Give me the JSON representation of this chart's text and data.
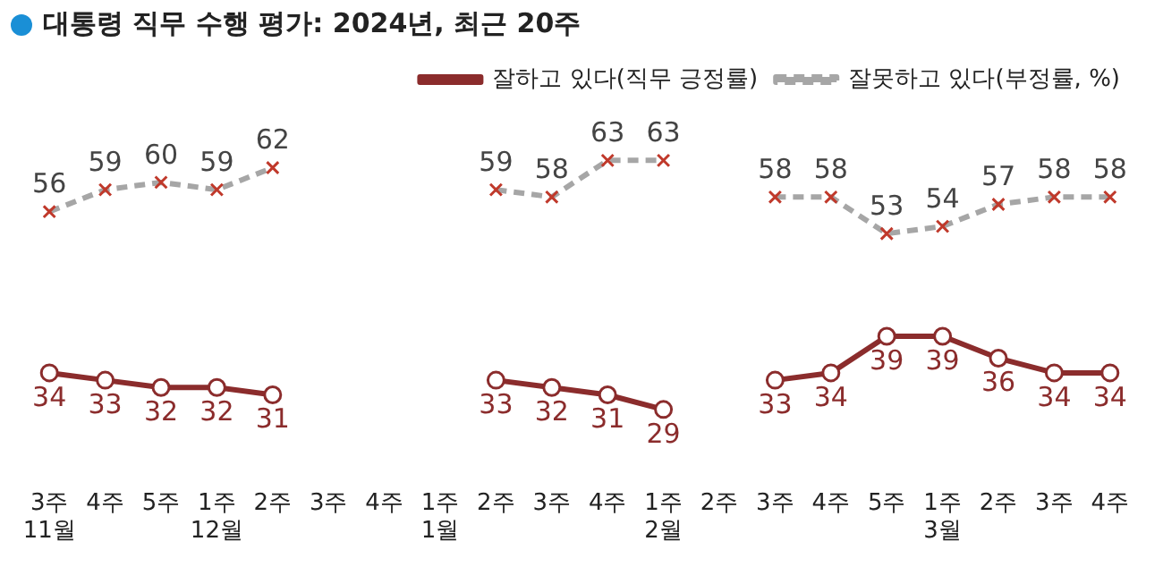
{
  "chart_data": {
    "type": "line",
    "title": "대통령 직무 수행 평가: 2024년, 최근 20주",
    "categories": [
      "3주\n11월",
      "4주",
      "5주",
      "1주\n12월",
      "2주",
      "3주",
      "4주",
      "1주\n1월",
      "2주",
      "3주",
      "4주",
      "1주\n2월",
      "2주",
      "3주",
      "4주",
      "5주",
      "1주\n3월",
      "2주",
      "3주",
      "4주"
    ],
    "series": [
      {
        "name": "잘하고 있다(직무 긍정률)",
        "color": "#8b2c2c",
        "marker": "circle",
        "line_style": "solid",
        "values": [
          34,
          33,
          32,
          32,
          31,
          null,
          null,
          null,
          33,
          32,
          31,
          29,
          null,
          33,
          34,
          39,
          39,
          36,
          34,
          34
        ]
      },
      {
        "name": "잘못하고 있다(부정률, %)",
        "color": "#a6a6a6",
        "marker": "cross",
        "line_style": "dashed",
        "values": [
          56,
          59,
          60,
          59,
          62,
          null,
          null,
          null,
          59,
          58,
          63,
          63,
          null,
          58,
          58,
          53,
          54,
          57,
          58,
          58
        ]
      }
    ],
    "tick_labels": "x",
    "grid": false,
    "legend": "top right",
    "data_labels": true
  }
}
